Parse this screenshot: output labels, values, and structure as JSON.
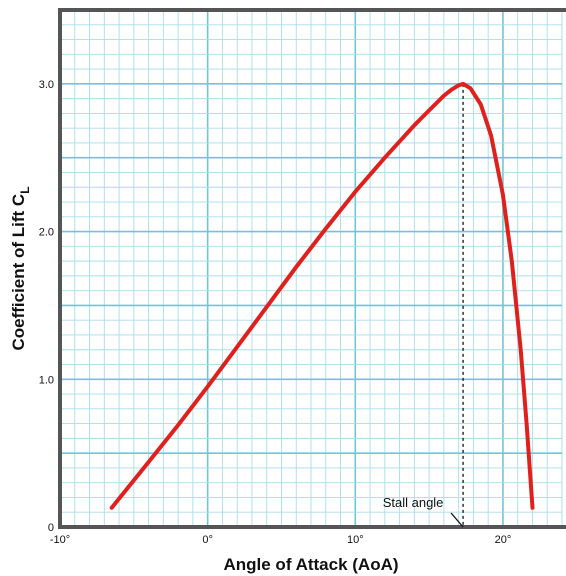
{
  "chart_data": {
    "type": "line",
    "title": "",
    "xlabel": "Angle of Attack (AoA)",
    "ylabel": "Coefficient of Lift C",
    "ylabel_subscript": "L",
    "xlim": [
      -10,
      24
    ],
    "ylim": [
      0,
      3.5
    ],
    "x_ticks": [
      -10,
      0,
      10,
      20
    ],
    "x_tick_labels": [
      "-10°",
      "0°",
      "10°",
      "20°"
    ],
    "y_ticks": [
      0,
      1.0,
      2.0,
      3.0
    ],
    "y_tick_labels": [
      "0",
      "1.0",
      "2.0",
      "3.0"
    ],
    "grid": true,
    "series": [
      {
        "color": "#e0201d",
        "x": [
          -6.5,
          -4,
          -2,
          0,
          2,
          4,
          6,
          8,
          10,
          12,
          14,
          15,
          16,
          16.5,
          17,
          17.3,
          17.8,
          18.5,
          19.2,
          20,
          20.6,
          21.2,
          21.6,
          22
        ],
        "y": [
          0.13,
          0.44,
          0.69,
          0.95,
          1.22,
          1.49,
          1.76,
          2.02,
          2.27,
          2.5,
          2.72,
          2.82,
          2.92,
          2.96,
          2.99,
          3.0,
          2.97,
          2.86,
          2.65,
          2.25,
          1.8,
          1.2,
          0.7,
          0.13
        ]
      }
    ],
    "annotations": [
      {
        "text": "Stall angle",
        "x": 17.3
      }
    ]
  }
}
